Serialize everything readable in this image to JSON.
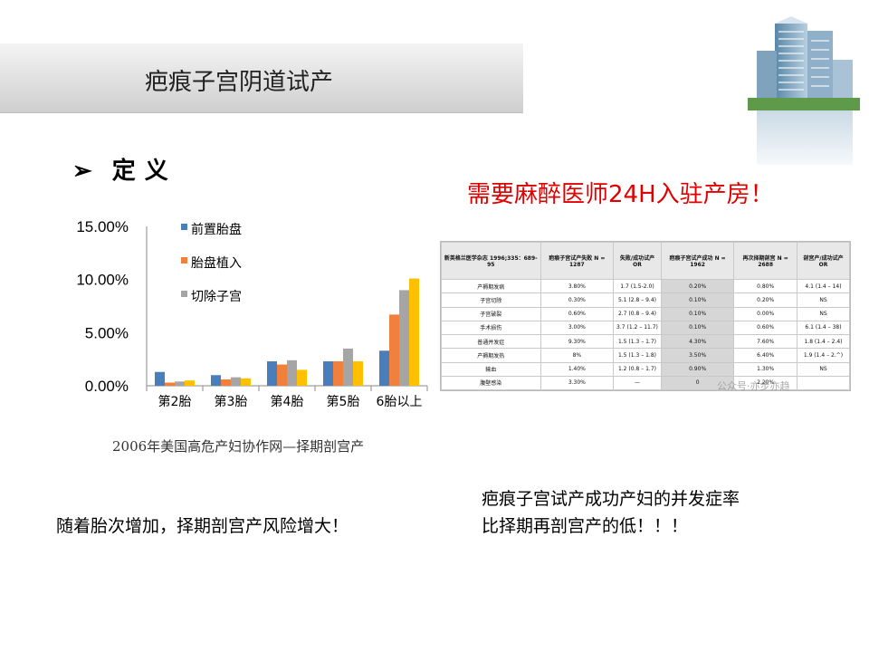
{
  "slide": {
    "title": "疤痕子宫阴道试产",
    "definition_bullet": "➢",
    "definition_label": "定义",
    "red_note": "需要麻醉医师24H入驻产房！",
    "chart_caption": "2006年美国高危产妇协作网—择期剖宫产",
    "note_left": "随着胎次增加，择期剖宫产风险增大！",
    "note_right_line1": "疤痕子宫试产成功产妇的并发症率",
    "note_right_line2": "比择期再剖宫产的低！！！",
    "watermark": "公众号·亦步亦趋"
  },
  "chart_data": {
    "type": "bar",
    "categories": [
      "第2胎",
      "第3胎",
      "第4胎",
      "第5胎",
      "6胎以上"
    ],
    "series": [
      {
        "name": "前置胎盘",
        "color": "#4a7ebb",
        "values": [
          1.3,
          1.0,
          2.3,
          2.3,
          3.3
        ]
      },
      {
        "name": "胎盘植入",
        "color": "#f0803c",
        "values": [
          0.3,
          0.6,
          2.0,
          2.3,
          6.7
        ]
      },
      {
        "name": "切除子宫",
        "color": "#a5a5a5",
        "values": [
          0.4,
          0.8,
          2.4,
          3.5,
          9.0
        ]
      },
      {
        "name": "",
        "color": "#ffc000",
        "values": [
          0.5,
          0.7,
          1.5,
          2.3,
          10.1
        ]
      }
    ],
    "y_ticks": [
      "15.00%",
      "10.00%",
      "5.00%",
      "0.00%"
    ],
    "ylim": [
      0,
      15
    ],
    "legend_position": "top-left",
    "grid": false
  },
  "table": {
    "headers": [
      "新英格兰医学杂志 1996;335：689-95",
      "疤痕子宫试产失败 N = 1287",
      "失败/成功试产OR",
      "疤痕子宫试产成功 N = 1962",
      "再次择期剖宫 N = 2688",
      "剖宫产/成功试产OR"
    ],
    "rows": [
      [
        "产褥期发病",
        "3.80%",
        "1.7 (1.5-2.0)",
        "0.20%",
        "0.80%",
        "4.1 (1.4 – 14)"
      ],
      [
        "子宫切除",
        "0.30%",
        "5.1 (2.8 – 9.4)",
        "0.10%",
        "0.20%",
        "NS"
      ],
      [
        "子宫破裂",
        "0.60%",
        "2.7 (0.8 – 9.4)",
        "0.10%",
        "0.00%",
        "NS"
      ],
      [
        "手术损伤",
        "3.00%",
        "3.7 (1.2 – 11.7)",
        "0.10%",
        "0.60%",
        "6.1 (1.4 – 38)"
      ],
      [
        "普通并发症",
        "9.30%",
        "1.5 (1.3 – 1.7)",
        "4.30%",
        "7.60%",
        "1.8 (1.4 – 2.4)"
      ],
      [
        "产褥期发热",
        "8%",
        "1.5 (1.3 – 1.8)",
        "3.50%",
        "6.40%",
        "1.9 (1.4 – 2.^)"
      ],
      [
        "输血",
        "1.40%",
        "1.2 (0.8 – 1.7)",
        "0.90%",
        "1.30%",
        "NS"
      ],
      [
        "腹壁感染",
        "3.30%",
        "—",
        "0",
        "2.20%",
        ""
      ]
    ]
  }
}
